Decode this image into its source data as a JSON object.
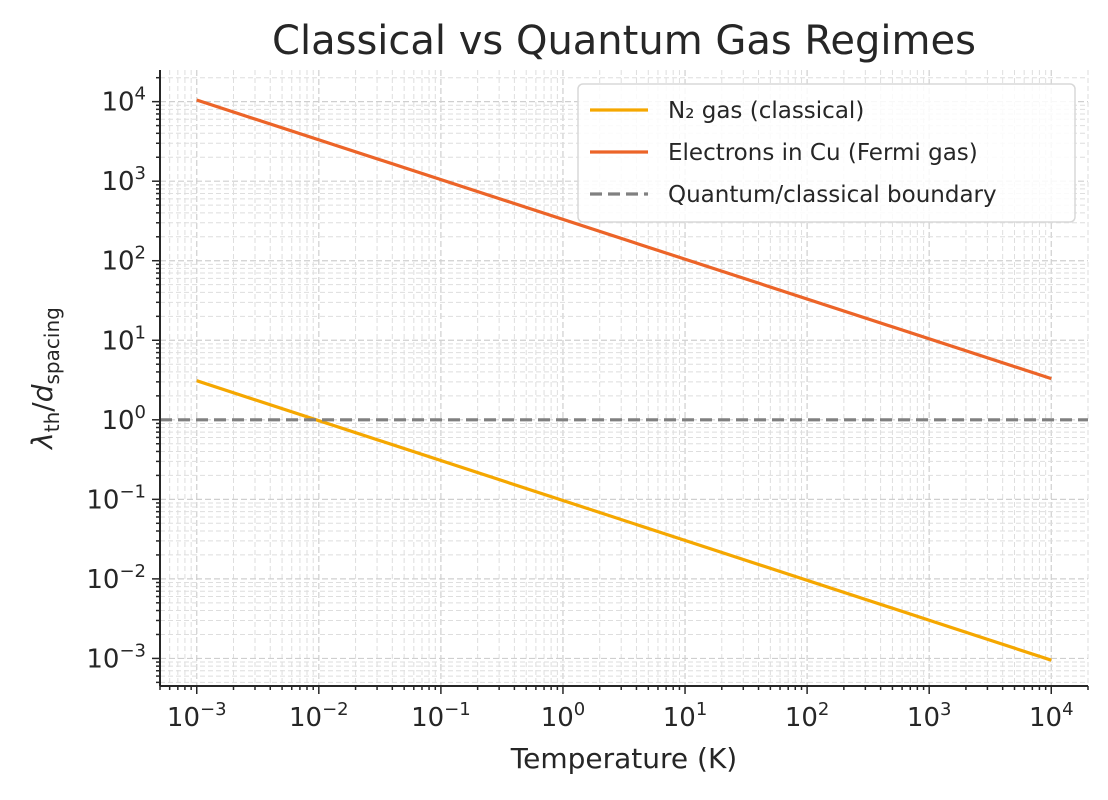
{
  "chart_data": {
    "type": "line",
    "title": "Classical vs Quantum Gas Regimes",
    "xlabel": "Temperature (K)",
    "ylabel_parts": [
      "λ",
      "th",
      "/",
      "d",
      "spacing"
    ],
    "x_scale": "log",
    "y_scale": "log",
    "xlim": [
      0.0005,
      20000
    ],
    "ylim": [
      0.00045,
      25000
    ],
    "grid": true,
    "legend_position": "top-right",
    "x_ticks": [
      {
        "value": 0.001,
        "base": "10",
        "exp": "−3"
      },
      {
        "value": 0.01,
        "base": "10",
        "exp": "−2"
      },
      {
        "value": 0.1,
        "base": "10",
        "exp": "−1"
      },
      {
        "value": 1,
        "base": "10",
        "exp": "0"
      },
      {
        "value": 10,
        "base": "10",
        "exp": "1"
      },
      {
        "value": 100,
        "base": "10",
        "exp": "2"
      },
      {
        "value": 1000,
        "base": "10",
        "exp": "3"
      },
      {
        "value": 10000,
        "base": "10",
        "exp": "4"
      }
    ],
    "y_ticks": [
      {
        "value": 0.001,
        "base": "10",
        "exp": "−3"
      },
      {
        "value": 0.01,
        "base": "10",
        "exp": "−2"
      },
      {
        "value": 0.1,
        "base": "10",
        "exp": "−1"
      },
      {
        "value": 1,
        "base": "10",
        "exp": "0"
      },
      {
        "value": 10,
        "base": "10",
        "exp": "1"
      },
      {
        "value": 100,
        "base": "10",
        "exp": "2"
      },
      {
        "value": 1000,
        "base": "10",
        "exp": "3"
      },
      {
        "value": 10000,
        "base": "10",
        "exp": "4"
      }
    ],
    "series": [
      {
        "name": "N₂ gas (classical)",
        "color": "#F5A700",
        "dash": "solid",
        "x": [
          0.001,
          10000
        ],
        "y": [
          3.1,
          0.00095
        ]
      },
      {
        "name": "Electrons in Cu (Fermi gas)",
        "color": "#EC6428",
        "dash": "solid",
        "x": [
          0.001,
          10000
        ],
        "y": [
          10500,
          3.3
        ]
      },
      {
        "name": "Quantum/classical boundary",
        "color": "#808080",
        "dash": "dashed",
        "hline": 1
      }
    ]
  }
}
